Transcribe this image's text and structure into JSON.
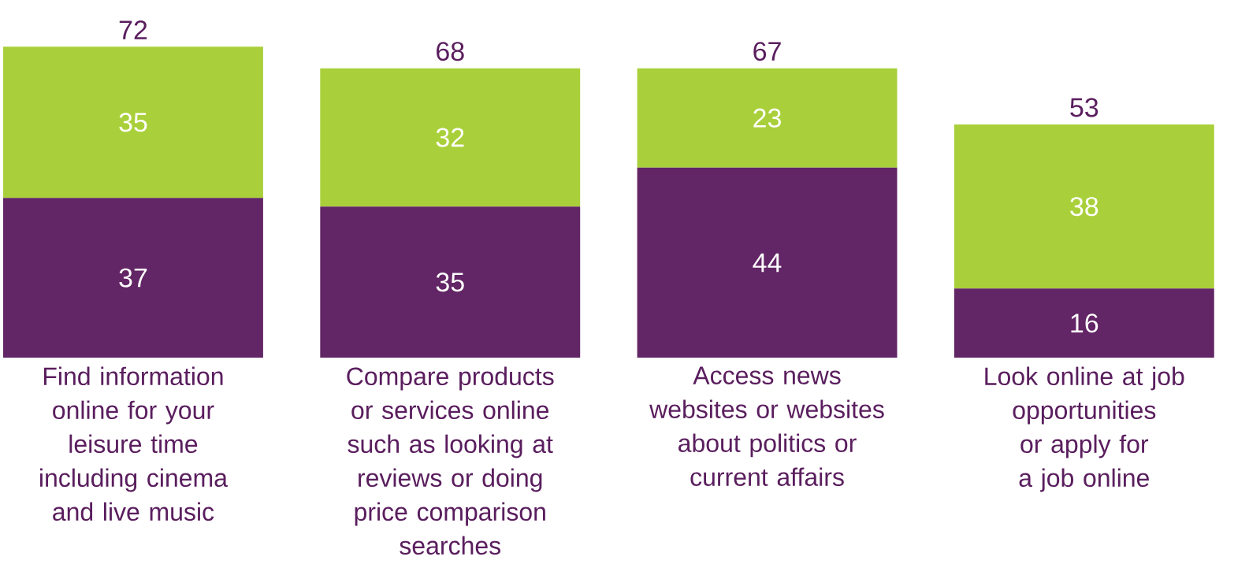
{
  "chart_data": {
    "type": "bar",
    "stacked": true,
    "data_labels": true,
    "categories": [
      "Find information online for your leisure time including cinema and live music",
      "Compare products or services online such as looking at reviews or doing price comparison searches",
      "Access news websites or websites about politics or current affairs",
      "Look online at job opportunities or apply for a job online"
    ],
    "series": [
      {
        "color": "#622565",
        "values": [
          37,
          35,
          44,
          16
        ]
      },
      {
        "color": "#a9d03a",
        "values": [
          35,
          32,
          23,
          38
        ]
      }
    ],
    "totals": [
      "72",
      "68",
      "67",
      "53"
    ]
  }
}
